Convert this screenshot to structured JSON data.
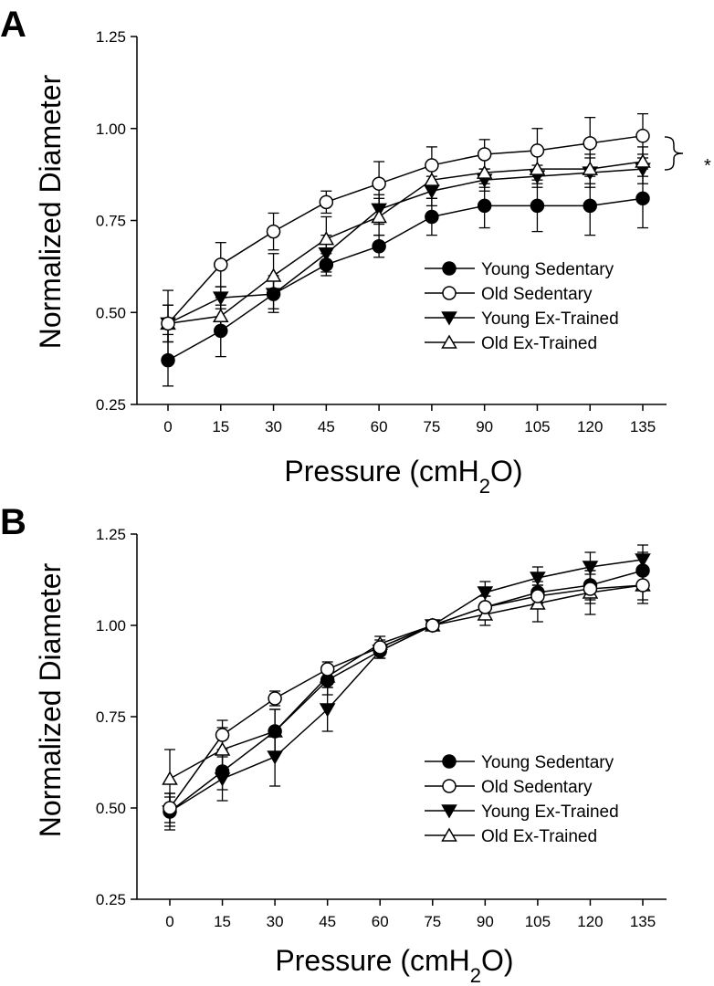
{
  "chart_data": [
    {
      "panel_label": "A",
      "type": "line",
      "xlabel": {
        "prefix": "Pressure (cmH",
        "subscript": "2",
        "suffix": "O)"
      },
      "ylabel": "Normalized Diameter",
      "x": [
        0,
        15,
        30,
        45,
        60,
        75,
        90,
        105,
        120,
        135
      ],
      "x_ticks": [
        "0",
        "15",
        "30",
        "45",
        "60",
        "75",
        "90",
        "105",
        "120",
        "135"
      ],
      "y_ticks": [
        "0.25",
        "0.50",
        "0.75",
        "1.00",
        "1.25"
      ],
      "ylim": [
        0.25,
        1.25
      ],
      "legend_position": "lower-right",
      "annotation": "*",
      "series": [
        {
          "name": "Young Sedentary",
          "marker": "filled-circle",
          "values": [
            0.37,
            0.45,
            0.55,
            0.63,
            0.68,
            0.76,
            0.79,
            0.79,
            0.79,
            0.81
          ],
          "errors": [
            0.07,
            0.07,
            0.05,
            0.03,
            0.03,
            0.05,
            0.06,
            0.07,
            0.08,
            0.08
          ]
        },
        {
          "name": "Old Sedentary",
          "marker": "open-circle",
          "values": [
            0.47,
            0.63,
            0.72,
            0.8,
            0.85,
            0.9,
            0.93,
            0.94,
            0.96,
            0.98
          ],
          "errors": [
            0.09,
            0.06,
            0.05,
            0.03,
            0.06,
            0.05,
            0.04,
            0.06,
            0.07,
            0.06
          ]
        },
        {
          "name": "Young Ex-Trained",
          "marker": "filled-triangle-down",
          "values": [
            0.47,
            0.54,
            0.55,
            0.66,
            0.78,
            0.83,
            0.86,
            0.87,
            0.88,
            0.89
          ],
          "errors": [
            0.05,
            0.03,
            0.04,
            0.05,
            0.04,
            0.04,
            0.03,
            0.03,
            0.04,
            0.04
          ]
        },
        {
          "name": "Old Ex-Trained",
          "marker": "open-triangle-up",
          "values": [
            0.47,
            0.49,
            0.6,
            0.7,
            0.76,
            0.86,
            0.88,
            0.89,
            0.89,
            0.91
          ],
          "errors": [
            0.05,
            0.05,
            0.06,
            0.06,
            0.05,
            0.05,
            0.04,
            0.04,
            0.04,
            0.04
          ]
        }
      ]
    },
    {
      "panel_label": "B",
      "type": "line",
      "xlabel": {
        "prefix": "Pressure (cmH",
        "subscript": "2",
        "suffix": "O)"
      },
      "ylabel": "Normalized Diameter",
      "x": [
        0,
        15,
        30,
        45,
        60,
        75,
        90,
        105,
        120,
        135
      ],
      "x_ticks": [
        "0",
        "15",
        "30",
        "45",
        "60",
        "75",
        "90",
        "105",
        "120",
        "135"
      ],
      "y_ticks": [
        "0.25",
        "0.50",
        "0.75",
        "1.00",
        "1.25"
      ],
      "ylim": [
        0.25,
        1.25
      ],
      "legend_position": "lower-right",
      "series": [
        {
          "name": "Young Sedentary",
          "marker": "filled-circle",
          "values": [
            0.49,
            0.6,
            0.71,
            0.85,
            0.93,
            1.0,
            1.05,
            1.09,
            1.11,
            1.15
          ],
          "errors": [
            0.05,
            0.05,
            0.06,
            0.04,
            0.02,
            0.0,
            0.03,
            0.03,
            0.04,
            0.05
          ]
        },
        {
          "name": "Old Sedentary",
          "marker": "open-circle",
          "values": [
            0.5,
            0.7,
            0.8,
            0.88,
            0.94,
            1.0,
            1.05,
            1.08,
            1.1,
            1.11
          ],
          "errors": [
            0.04,
            0.04,
            0.02,
            0.02,
            0.02,
            0.0,
            0.03,
            0.03,
            0.04,
            0.04
          ]
        },
        {
          "name": "Young Ex-Trained",
          "marker": "filled-triangle-down",
          "values": [
            0.49,
            0.58,
            0.64,
            0.77,
            0.93,
            1.0,
            1.09,
            1.13,
            1.16,
            1.18
          ],
          "errors": [
            0.04,
            0.06,
            0.08,
            0.06,
            0.02,
            0.0,
            0.03,
            0.03,
            0.04,
            0.04
          ]
        },
        {
          "name": "Old Ex-Trained",
          "marker": "open-triangle-up",
          "values": [
            0.58,
            0.66,
            0.71,
            0.86,
            0.95,
            1.0,
            1.03,
            1.06,
            1.09,
            1.11
          ],
          "errors": [
            0.08,
            0.06,
            0.06,
            0.03,
            0.02,
            0.0,
            0.03,
            0.05,
            0.06,
            0.05
          ]
        }
      ]
    }
  ]
}
